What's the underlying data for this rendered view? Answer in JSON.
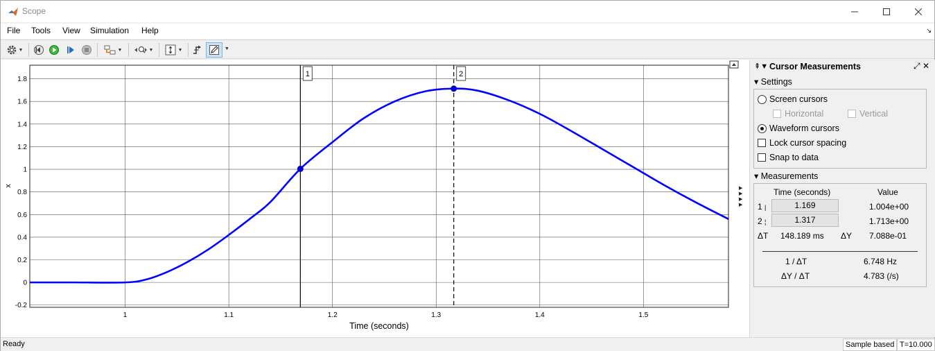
{
  "window": {
    "title": "Scope"
  },
  "menu": [
    "File",
    "Tools",
    "View",
    "Simulation",
    "Help"
  ],
  "toolbar": {
    "icons": [
      "gear-icon",
      "step-back-icon",
      "run-icon",
      "step-forward-icon",
      "stop-icon",
      "highlight-simulink-block-icon",
      "zoom-icon",
      "scale-axes-icon",
      "triggers-icon",
      "cursor-measurements-icon"
    ]
  },
  "plot": {
    "ylabel": "x",
    "xlabel": "Time (seconds)",
    "cursor1_label": "1",
    "cursor2_label": "2"
  },
  "chart_data": {
    "type": "line",
    "xlabel": "Time (seconds)",
    "ylabel": "x",
    "xlim": [
      0.908,
      1.582
    ],
    "ylim": [
      -0.22,
      1.92
    ],
    "xticks": [
      "1",
      "1.1",
      "1.2",
      "1.3",
      "1.4",
      "1.5"
    ],
    "yticks": [
      "-0.2",
      "0",
      "0.2",
      "0.4",
      "0.6",
      "0.8",
      "1",
      "1.2",
      "1.4",
      "1.6",
      "1.8"
    ],
    "grid": true,
    "line_color": "#0000ff",
    "series": [
      {
        "x": [
          0.908,
          0.95,
          1.0,
          1.02,
          1.04,
          1.06,
          1.08,
          1.1,
          1.12,
          1.14,
          1.169,
          1.2,
          1.23,
          1.26,
          1.29,
          1.317,
          1.34,
          1.37,
          1.4,
          1.43,
          1.46,
          1.49,
          1.52,
          1.55,
          1.582
        ],
        "y": [
          0,
          0,
          0.0,
          0.025,
          0.09,
          0.18,
          0.29,
          0.42,
          0.56,
          0.71,
          1.004,
          1.24,
          1.45,
          1.6,
          1.69,
          1.713,
          1.695,
          1.61,
          1.49,
          1.34,
          1.18,
          1.02,
          0.86,
          0.71,
          0.56
        ]
      }
    ],
    "cursors": [
      {
        "id": "1",
        "x": 1.169,
        "y": 1.004,
        "style": "solid"
      },
      {
        "id": "2",
        "x": 1.317,
        "y": 1.713,
        "style": "dashed"
      }
    ]
  },
  "panel": {
    "title": "Cursor Measurements",
    "settings_label": "Settings",
    "screen_cursors": "Screen cursors",
    "horizontal": "Horizontal",
    "vertical": "Vertical",
    "waveform_cursors": "Waveform cursors",
    "lock_spacing": "Lock cursor spacing",
    "snap_to_data": "Snap to data",
    "measurements_label": "Measurements",
    "col_time": "Time (seconds)",
    "col_value": "Value",
    "row1_id": "1",
    "row1_time": "1.169",
    "row1_value": "1.004e+00",
    "row2_id": "2",
    "row2_time": "1.317",
    "row2_value": "1.713e+00",
    "dt_label": "ΔT",
    "dt_value": "148.189 ms",
    "dy_label": "ΔY",
    "dy_value": "7.088e-01",
    "inv_dt_label": "1 / ΔT",
    "inv_dt_value": "6.748 Hz",
    "slope_label": "ΔY / ΔT",
    "slope_value": "4.783 (/s)"
  },
  "status": {
    "text": "Ready",
    "mode": "Sample based",
    "time": "T=10.000"
  }
}
